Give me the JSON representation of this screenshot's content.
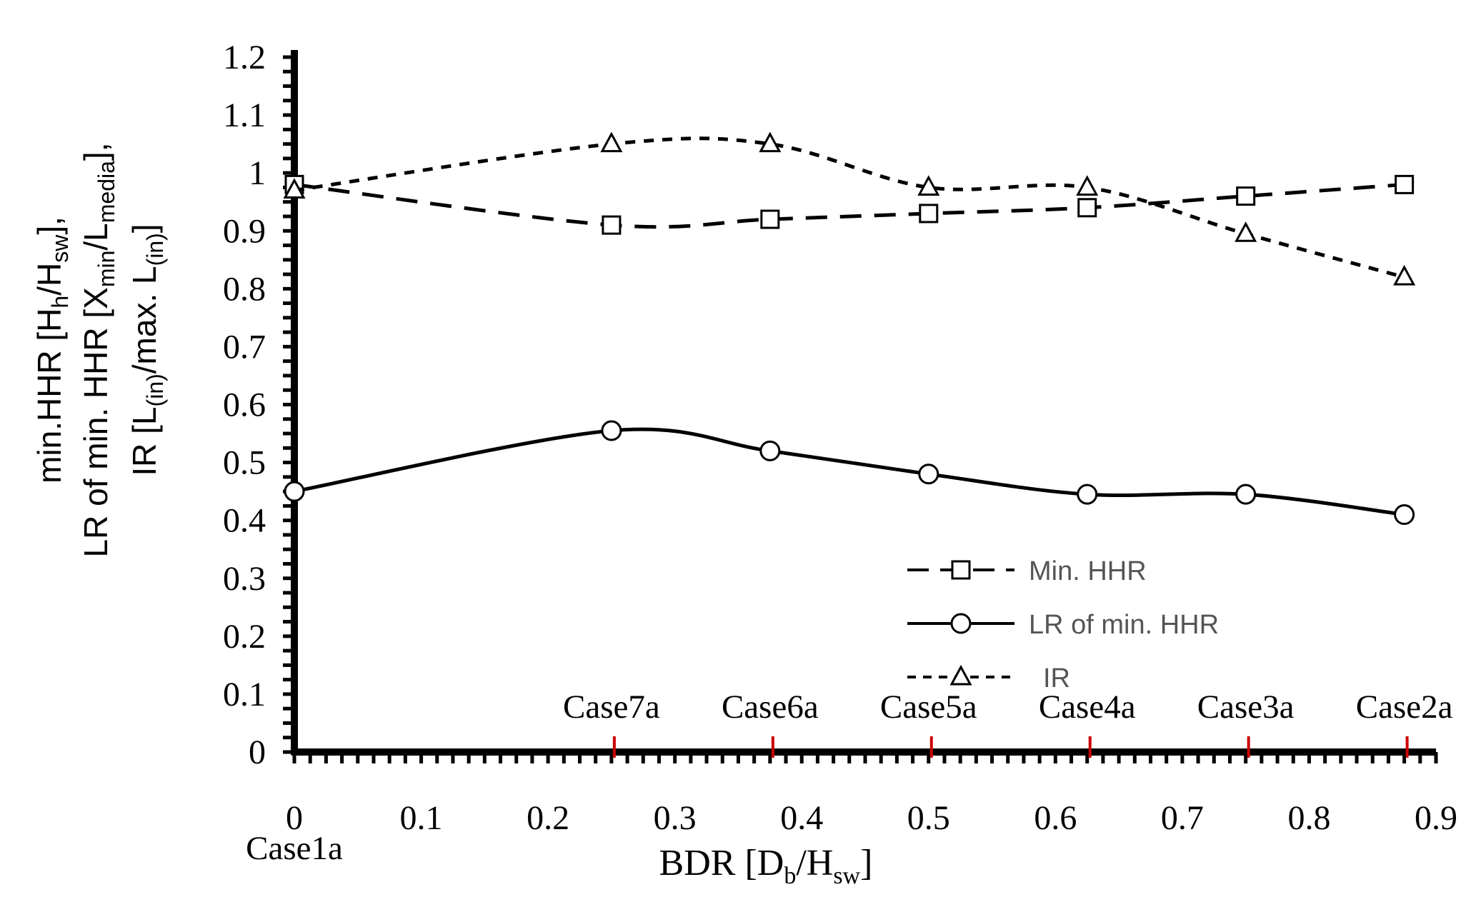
{
  "chart_data": {
    "type": "line",
    "x_ticks": [
      "0",
      "0.1",
      "0.2",
      "0.3",
      "0.4",
      "0.5",
      "0.6",
      "0.7",
      "0.8",
      "0.9"
    ],
    "y_ticks": [
      "0",
      "0.1",
      "0.2",
      "0.3",
      "0.4",
      "0.5",
      "0.6",
      "0.7",
      "0.8",
      "0.9",
      "1",
      "1.1",
      "1.2"
    ],
    "xlim": [
      0,
      0.9
    ],
    "ylim": [
      0,
      1.2
    ],
    "x": [
      0,
      0.25,
      0.375,
      0.5,
      0.625,
      0.75,
      0.875
    ],
    "series": [
      {
        "name": "Min. HHR",
        "style": "long-dash",
        "marker": "square",
        "values": [
          0.98,
          0.91,
          0.92,
          0.93,
          0.94,
          0.96,
          0.98
        ]
      },
      {
        "name": "LR of min. HHR",
        "style": "solid",
        "marker": "circle",
        "values": [
          0.45,
          0.555,
          0.52,
          0.48,
          0.445,
          0.445,
          0.41
        ]
      },
      {
        "name": "IR",
        "style": "short-dash",
        "marker": "triangle",
        "values": [
          0.97,
          1.05,
          1.05,
          0.975,
          0.975,
          0.895,
          0.82
        ]
      }
    ],
    "case_labels": [
      {
        "label": "Case1a",
        "x": 0
      },
      {
        "label": "Case7a",
        "x": 0.25
      },
      {
        "label": "Case6a",
        "x": 0.375
      },
      {
        "label": "Case5a",
        "x": 0.5
      },
      {
        "label": "Case4a",
        "x": 0.625
      },
      {
        "label": "Case3a",
        "x": 0.75
      },
      {
        "label": "Case2a",
        "x": 0.875
      }
    ],
    "xlabel": {
      "main": "BDR [D",
      "sub1": "b",
      "mid": "/H",
      "sub2": "sw",
      "end": "]"
    },
    "ylabel_lines": [
      [
        {
          "t": "min.HHR [H"
        },
        {
          "t": "h",
          "sub": true
        },
        {
          "t": "/H"
        },
        {
          "t": "sw",
          "sub": true
        },
        {
          "t": "],"
        }
      ],
      [
        {
          "t": "LR of min. HHR [X"
        },
        {
          "t": "min",
          "sub": true
        },
        {
          "t": "/L"
        },
        {
          "t": "media",
          "sub": true
        },
        {
          "t": "],"
        }
      ],
      [
        {
          "t": "IR [L"
        },
        {
          "t": "(in)",
          "sub": true
        },
        {
          "t": "/max. L"
        },
        {
          "t": "(in)",
          "sub": true
        },
        {
          "t": "]"
        }
      ]
    ],
    "legend_position": "bottom-right",
    "grid": false
  }
}
